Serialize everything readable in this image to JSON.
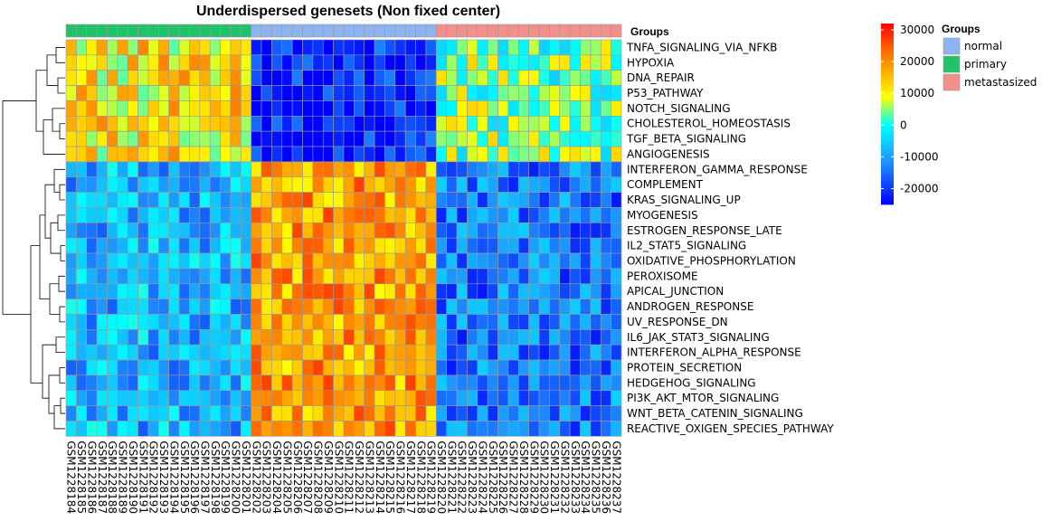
{
  "chart_data": {
    "type": "heatmap",
    "title": "Underdispersed genesets (Non fixed center)",
    "annotation_label": "Groups",
    "columns": [
      "GSM1228184",
      "GSM1228185",
      "GSM1228186",
      "GSM1228187",
      "GSM1228188",
      "GSM1228189",
      "GSM1228190",
      "GSM1228191",
      "GSM1228192",
      "GSM1228193",
      "GSM1228194",
      "GSM1228195",
      "GSM1228196",
      "GSM1228197",
      "GSM1228198",
      "GSM1228199",
      "GSM1228200",
      "GSM1228201",
      "GSM1228202",
      "GSM1228203",
      "GSM1228204",
      "GSM1228205",
      "GSM1228206",
      "GSM1228207",
      "GSM1228208",
      "GSM1228209",
      "GSM1228210",
      "GSM1228211",
      "GSM1228212",
      "GSM1228213",
      "GSM1228214",
      "GSM1228215",
      "GSM1228216",
      "GSM1228217",
      "GSM1228218",
      "GSM1228219",
      "GSM1228220",
      "GSM1228221",
      "GSM1228222",
      "GSM1228223",
      "GSM1228224",
      "GSM1228225",
      "GSM1228226",
      "GSM1228227",
      "GSM1228228",
      "GSM1228229",
      "GSM1228230",
      "GSM1228231",
      "GSM1228232",
      "GSM1228233",
      "GSM1228234",
      "GSM1228235",
      "GSM1228236",
      "GSM1228237"
    ],
    "column_groups": [
      "primary",
      "primary",
      "primary",
      "primary",
      "primary",
      "primary",
      "primary",
      "primary",
      "primary",
      "primary",
      "primary",
      "primary",
      "primary",
      "primary",
      "primary",
      "primary",
      "primary",
      "primary",
      "normal",
      "normal",
      "normal",
      "normal",
      "normal",
      "normal",
      "normal",
      "normal",
      "normal",
      "normal",
      "normal",
      "normal",
      "normal",
      "normal",
      "normal",
      "normal",
      "normal",
      "normal",
      "metastasized",
      "metastasized",
      "metastasized",
      "metastasized",
      "metastasized",
      "metastasized",
      "metastasized",
      "metastasized",
      "metastasized",
      "metastasized",
      "metastasized",
      "metastasized",
      "metastasized",
      "metastasized",
      "metastasized",
      "metastasized",
      "metastasized",
      "metastasized"
    ],
    "rows": [
      "TNFA_SIGNALING_VIA_NFKB",
      "HYPOXIA",
      "DNA_REPAIR",
      "P53_PATHWAY",
      "NOTCH_SIGNALING",
      "CHOLESTEROL_HOMEOSTASIS",
      "TGF_BETA_SIGNALING",
      "ANGIOGENESIS",
      "INTERFERON_GAMMA_RESPONSE",
      "COMPLEMENT",
      "KRAS_SIGNALING_UP",
      "MYOGENESIS",
      "ESTROGEN_RESPONSE_LATE",
      "IL2_STAT5_SIGNALING",
      "OXIDATIVE_PHOSPHORYLATION",
      "PEROXISOME",
      "APICAL_JUNCTION",
      "ANDROGEN_RESPONSE",
      "UV_RESPONSE_DN",
      "IL6_JAK_STAT3_SIGNALING",
      "INTERFERON_ALPHA_RESPONSE",
      "PROTEIN_SECRETION",
      "HEDGEHOG_SIGNALING",
      "PI3K_AKT_MTOR_SIGNALING",
      "WNT_BETA_CATENIN_SIGNALING",
      "REACTIVE_OXIGEN_SPECIES_PATHWAY"
    ],
    "values_pattern": {
      "note": "approximate cell values (data units) read off the color scale; block means per row-cluster x column-group",
      "top_rows_primary": 12000,
      "top_rows_normal": -22000,
      "top_rows_metastasized": 4000,
      "bottom_rows_primary": -8000,
      "bottom_rows_normal": 18000,
      "bottom_rows_metastasized": -14000,
      "top_row_count": 8
    },
    "color_scale": {
      "min": -25000,
      "max": 32000,
      "ticks": [
        30000,
        20000,
        10000,
        0,
        -10000,
        -20000
      ],
      "tick_labels": [
        "30000",
        "20000",
        "10000",
        "0",
        "-10000",
        "-20000"
      ],
      "stops": [
        {
          "v": -25000,
          "c": "#0000ff"
        },
        {
          "v": -12000,
          "c": "#1e90ff"
        },
        {
          "v": 0,
          "c": "#00ffff"
        },
        {
          "v": 9000,
          "c": "#ffff00"
        },
        {
          "v": 16000,
          "c": "#ffb400"
        },
        {
          "v": 24000,
          "c": "#ff6400"
        },
        {
          "v": 32000,
          "c": "#ff0000"
        }
      ]
    },
    "legend": {
      "title": "Groups",
      "entries": [
        {
          "label": "normal",
          "color": "#8db4f0"
        },
        {
          "label": "primary",
          "color": "#1fc46a"
        },
        {
          "label": "metastasized",
          "color": "#f3908c"
        }
      ],
      "placement": "right"
    },
    "group_colors": {
      "normal": "#8db4f0",
      "primary": "#1fc46a",
      "metastasized": "#f3908c"
    },
    "cell_border_color": "#9a9a9a"
  }
}
